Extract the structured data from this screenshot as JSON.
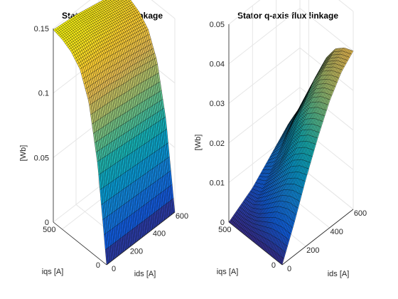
{
  "chart_data": [
    {
      "type": "surface",
      "title": "Stator d-axis flux linkage",
      "xlabel": "ids [A]",
      "ylabel": "iqs [A]",
      "zlabel": "[Wb]",
      "xlim": [
        0,
        600
      ],
      "ylim": [
        0,
        600
      ],
      "zlim": [
        0,
        0.15
      ],
      "xticks": [
        "0",
        "200",
        "400",
        "600"
      ],
      "yticks": [
        "0",
        "500"
      ],
      "zticks": [
        "0",
        "0.05",
        "0.1",
        "0.15"
      ],
      "colormap": "parula",
      "grid": true,
      "x": [
        0,
        100,
        200,
        300,
        400,
        500,
        600
      ],
      "y": [
        0,
        100,
        200,
        300,
        400,
        500,
        600
      ],
      "z": [
        [
          0.0,
          0.0,
          0.0,
          0.0,
          0.0,
          0.0,
          0.0
        ],
        [
          0.072,
          0.071,
          0.07,
          0.069,
          0.068,
          0.067,
          0.066
        ],
        [
          0.115,
          0.114,
          0.113,
          0.111,
          0.11,
          0.108,
          0.106
        ],
        [
          0.135,
          0.134,
          0.133,
          0.131,
          0.129,
          0.127,
          0.125
        ],
        [
          0.143,
          0.142,
          0.141,
          0.139,
          0.137,
          0.135,
          0.133
        ],
        [
          0.147,
          0.146,
          0.145,
          0.143,
          0.141,
          0.139,
          0.137
        ],
        [
          0.149,
          0.148,
          0.147,
          0.145,
          0.143,
          0.141,
          0.139
        ]
      ]
    },
    {
      "type": "surface",
      "title": "Stator q-axis flux linkage",
      "xlabel": "ids [A]",
      "ylabel": "iqs [A]",
      "zlabel": "[Wb]",
      "xlim": [
        0,
        600
      ],
      "ylim": [
        0,
        600
      ],
      "zlim": [
        0,
        0.05
      ],
      "xticks": [
        "0",
        "200",
        "400",
        "600"
      ],
      "yticks": [
        "0",
        "500"
      ],
      "zticks": [
        "0",
        "0.01",
        "0.02",
        "0.03",
        "0.04",
        "0.05"
      ],
      "colormap": "parula",
      "grid": true,
      "x": [
        0,
        100,
        200,
        300,
        400,
        500,
        600
      ],
      "y": [
        0,
        100,
        200,
        300,
        400,
        500,
        600
      ],
      "z": [
        [
          0.0,
          0.008,
          0.017,
          0.025,
          0.032,
          0.037,
          0.04
        ],
        [
          0.0,
          0.008,
          0.016,
          0.024,
          0.031,
          0.036,
          0.039
        ],
        [
          0.0,
          0.007,
          0.014,
          0.022,
          0.029,
          0.034,
          0.037
        ],
        [
          0.0,
          0.005,
          0.011,
          0.018,
          0.025,
          0.03,
          0.033
        ],
        [
          0.0,
          0.003,
          0.008,
          0.013,
          0.02,
          0.024,
          0.027
        ],
        [
          0.0,
          0.002,
          0.005,
          0.009,
          0.014,
          0.018,
          0.02
        ],
        [
          0.0,
          0.002,
          0.004,
          0.007,
          0.01,
          0.013,
          0.015
        ]
      ]
    }
  ]
}
